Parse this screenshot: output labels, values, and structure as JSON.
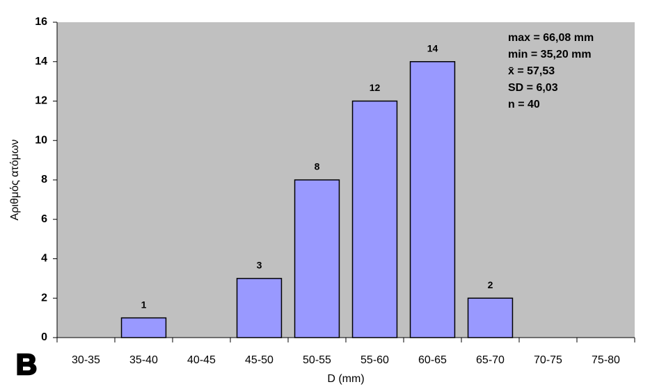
{
  "chart_data": {
    "type": "bar",
    "panel_label": "B",
    "x_label": "D (mm)",
    "y_label": "Αριθμός ατόμων",
    "categories": [
      "30-35",
      "35-40",
      "40-45",
      "45-50",
      "50-55",
      "55-60",
      "60-65",
      "65-70",
      "70-75",
      "75-80"
    ],
    "values": [
      0,
      1,
      0,
      3,
      8,
      12,
      14,
      2,
      0,
      0
    ],
    "color": "#9999ff",
    "ylim": [
      0,
      16
    ],
    "yticks": [
      0,
      2,
      4,
      6,
      8,
      10,
      12,
      14,
      16
    ],
    "annotations": [
      "max = 66,08 mm",
      "min = 35,20 mm",
      "x̄ = 57,53",
      "SD = 6,03",
      "n = 40"
    ]
  }
}
